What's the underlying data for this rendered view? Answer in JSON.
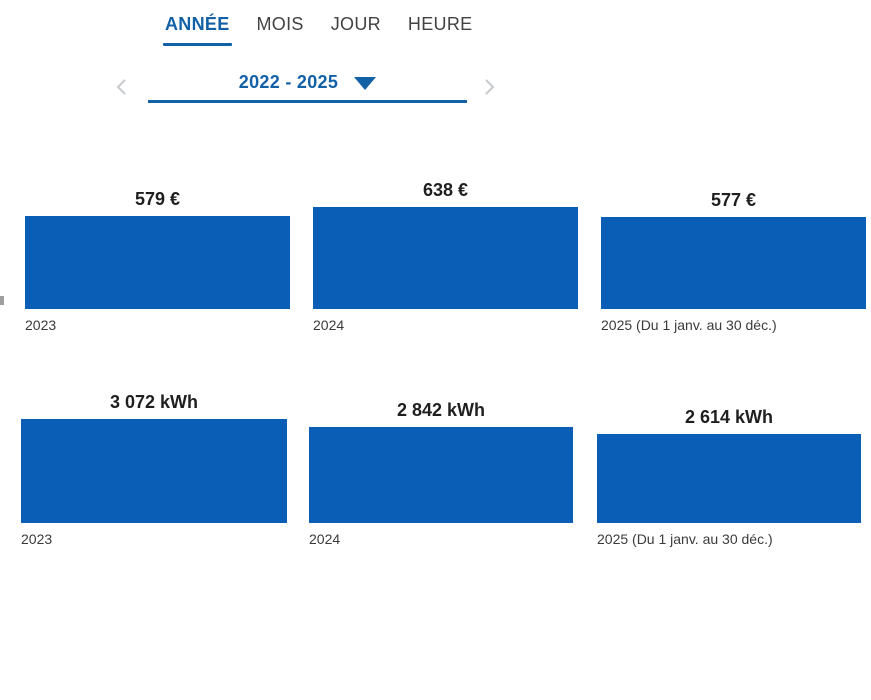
{
  "tabs": {
    "items": [
      {
        "label": "ANNÉE",
        "active": true
      },
      {
        "label": "MOIS",
        "active": false
      },
      {
        "label": "JOUR",
        "active": false
      },
      {
        "label": "HEURE",
        "active": false
      }
    ]
  },
  "period_selector": {
    "value": "2022 - 2025",
    "prev_icon": "chevron-left",
    "next_icon": "chevron-right",
    "dropdown_icon": "triangle-down"
  },
  "colors": {
    "accent_blue": "#1261a6",
    "bar_blue": "#0a5eb5",
    "inactive_tab_text": "#424242",
    "chevron_gray": "#c9ccd0",
    "value_text": "#1f1f1f",
    "axis_label_text": "#3b3b3b"
  },
  "chart_data": [
    {
      "type": "bar",
      "unit": "€",
      "categories": [
        "2023",
        "2024",
        "2025 (Du 1 janv. au 30 déc.)"
      ],
      "values": [
        579,
        638,
        577
      ],
      "value_labels": [
        "579 €",
        "638 €",
        "577 €"
      ],
      "legend": "none",
      "grid": false,
      "orientation": "vertical"
    },
    {
      "type": "bar",
      "unit": "kWh",
      "categories": [
        "2023",
        "2024",
        "2025 (Du 1 janv. au 30 déc.)"
      ],
      "values": [
        3072,
        2842,
        2614
      ],
      "value_labels": [
        "3 072 kWh",
        "2 842 kWh",
        "2 614 kWh"
      ],
      "legend": "none",
      "grid": false,
      "orientation": "vertical"
    }
  ]
}
